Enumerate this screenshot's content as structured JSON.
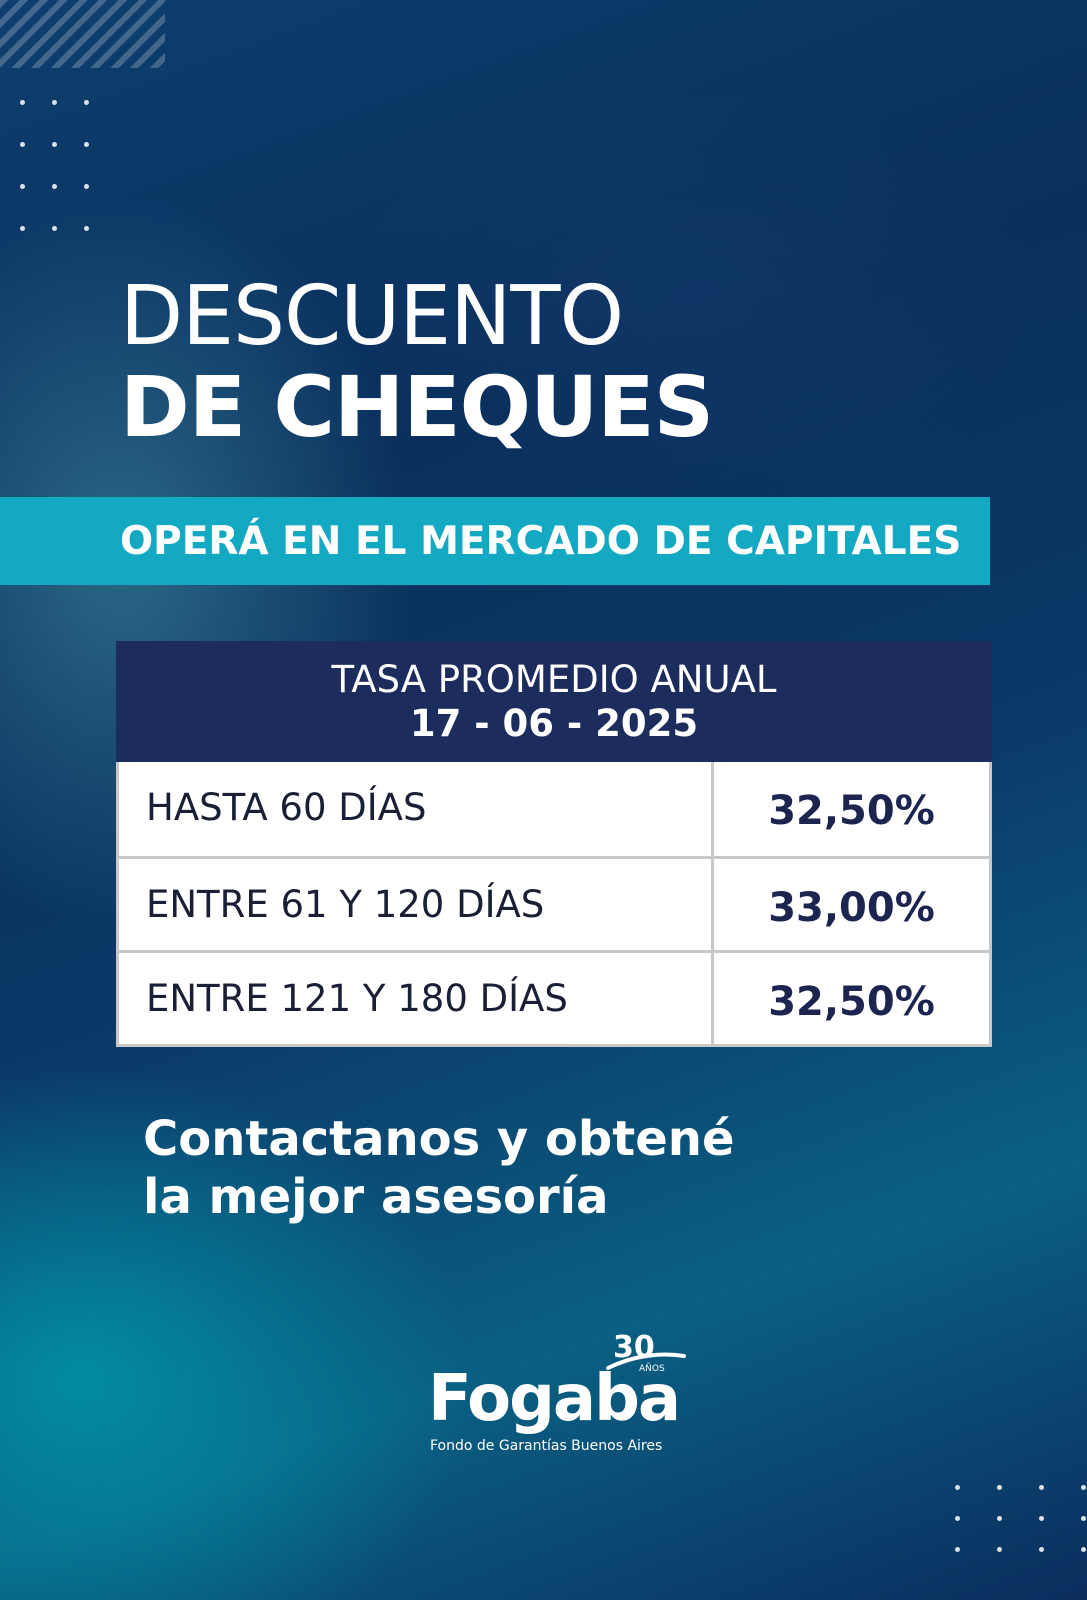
{
  "title": {
    "line1": "DESCUENTO",
    "line2": "DE CHEQUES"
  },
  "banner": {
    "text": "OPERÁ EN EL MERCADO DE CAPITALES"
  },
  "rates": {
    "header": "TASA PROMEDIO ANUAL",
    "date": "17 - 06 - 2025",
    "rows": [
      {
        "label": "HASTA 60 DÍAS",
        "value": "32,50%"
      },
      {
        "label": "ENTRE 61 Y 120 DÍAS",
        "value": "33,00%"
      },
      {
        "label": "ENTRE 121 Y 180 DÍAS",
        "value": "32,50%"
      }
    ]
  },
  "contact": {
    "line1": "Contactanos y obtené",
    "line2": "la mejor asesoría"
  },
  "logo": {
    "name": "Fogaba",
    "badge_number": "30",
    "badge_text": "AÑOS",
    "tagline": "Fondo de Garantías Buenos Aires"
  },
  "colors": {
    "banner": "#14a9c3",
    "table_header": "#1c2c5c",
    "table_value_text": "#1c2450"
  }
}
